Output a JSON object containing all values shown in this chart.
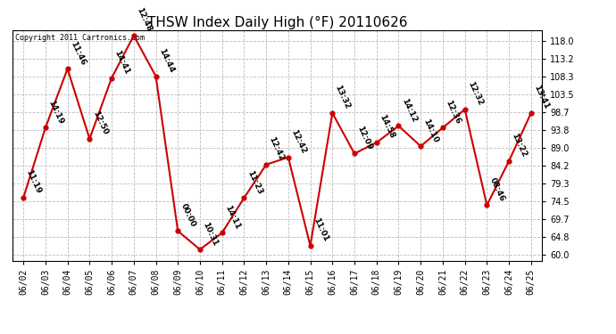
{
  "title": "THSW Index Daily High (°F) 20110626",
  "copyright": "Copyright 2011 Cartronics.com",
  "dates": [
    "06/02",
    "06/03",
    "06/04",
    "06/05",
    "06/06",
    "06/07",
    "06/08",
    "06/09",
    "06/10",
    "06/11",
    "06/12",
    "06/13",
    "06/14",
    "06/15",
    "06/16",
    "06/17",
    "06/18",
    "06/19",
    "06/20",
    "06/21",
    "06/22",
    "06/23",
    "06/24",
    "06/25"
  ],
  "values": [
    75.5,
    94.5,
    110.5,
    91.5,
    108.0,
    119.5,
    108.5,
    66.5,
    61.5,
    66.0,
    75.5,
    84.5,
    86.5,
    62.5,
    98.5,
    87.5,
    90.5,
    95.0,
    89.5,
    94.5,
    99.5,
    73.5,
    85.5,
    98.5
  ],
  "time_labels": [
    "11:19",
    "14:19",
    "11:46",
    "12:50",
    "14:41",
    "12:48",
    "14:44",
    "00:00",
    "10:31",
    "14:11",
    "11:23",
    "12:42",
    "12:42",
    "11:01",
    "13:32",
    "12:09",
    "14:58",
    "14:12",
    "14:10",
    "12:36",
    "12:32",
    "08:46",
    "13:22",
    "13:41"
  ],
  "line_color": "#cc0000",
  "marker_color": "#cc0000",
  "bg_color": "#ffffff",
  "grid_color": "#bbbbbb",
  "yticks": [
    60.0,
    64.8,
    69.7,
    74.5,
    79.3,
    84.2,
    89.0,
    93.8,
    98.7,
    103.5,
    108.3,
    113.2,
    118.0
  ],
  "ylim": [
    58.5,
    121.0
  ],
  "title_fontsize": 11,
  "label_fontsize": 6.5,
  "tick_fontsize": 7,
  "copyright_fontsize": 6
}
